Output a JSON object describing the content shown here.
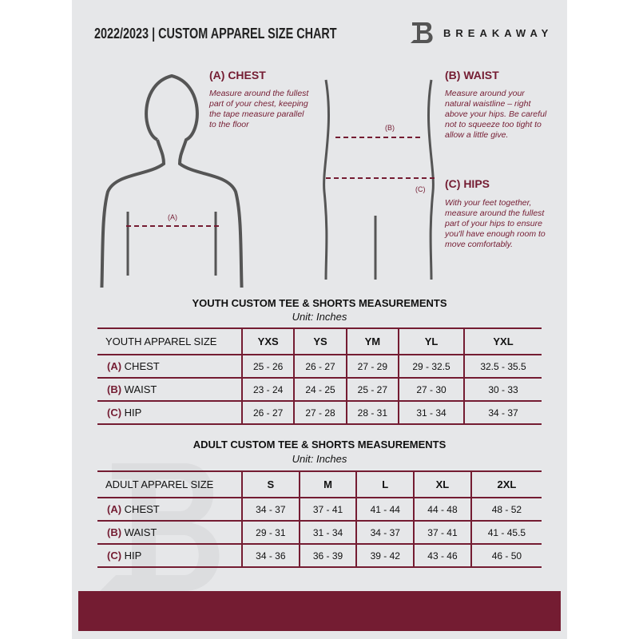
{
  "header": {
    "title": "2022/2023  |  CUSTOM APPAREL SIZE CHART",
    "brand": "BREAKAWAY"
  },
  "guide": {
    "chest": {
      "label": "(A) CHEST",
      "marker": "(A)",
      "text": "Measure around the fullest part of your chest, keeping the tape measure parallel to the floor"
    },
    "waist": {
      "label": "(B) WAIST",
      "marker": "(B)",
      "text": "Measure around your natural waistline – right above your hips. Be careful not to squeeze too tight to allow a little give."
    },
    "hips": {
      "label": "(C) HIPS",
      "marker": "(C)",
      "text": "With your feet together, measure around the fullest part of your hips to ensure you'll have enough room to move comfortably."
    }
  },
  "youth": {
    "title": "YOUTH CUSTOM TEE & SHORTS MEASUREMENTS",
    "unit": "Unit: Inches",
    "header": "YOUTH APPAREL SIZE",
    "sizes": [
      "YXS",
      "YS",
      "YM",
      "YL",
      "YXL"
    ],
    "rows": [
      {
        "key": "(A)",
        "name": "CHEST",
        "values": [
          "25 - 26",
          "26 - 27",
          "27 - 29",
          "29 - 32.5",
          "32.5 - 35.5"
        ]
      },
      {
        "key": "(B)",
        "name": "WAIST",
        "values": [
          "23 - 24",
          "24 - 25",
          "25 - 27",
          "27 - 30",
          "30 - 33"
        ]
      },
      {
        "key": "(C)",
        "name": "HIP",
        "values": [
          "26 - 27",
          "27 - 28",
          "28 - 31",
          "31 - 34",
          "34 - 37"
        ]
      }
    ]
  },
  "adult": {
    "title": "ADULT CUSTOM TEE & SHORTS MEASUREMENTS",
    "unit": "Unit: Inches",
    "header": "ADULT APPAREL SIZE",
    "sizes": [
      "S",
      "M",
      "L",
      "XL",
      "2XL"
    ],
    "rows": [
      {
        "key": "(A)",
        "name": "CHEST",
        "values": [
          "34 - 37",
          "37 - 41",
          "41 - 44",
          "44 - 48",
          "48 - 52"
        ]
      },
      {
        "key": "(B)",
        "name": "WAIST",
        "values": [
          "29 - 31",
          "31 - 34",
          "34 - 37",
          "37 - 41",
          "41 - 45.5"
        ]
      },
      {
        "key": "(C)",
        "name": "HIP",
        "values": [
          "34 - 36",
          "36 - 39",
          "39 - 42",
          "43 - 46",
          "46 - 50"
        ]
      }
    ]
  },
  "colors": {
    "accent": "#741c32",
    "background": "#e6e7e9"
  }
}
